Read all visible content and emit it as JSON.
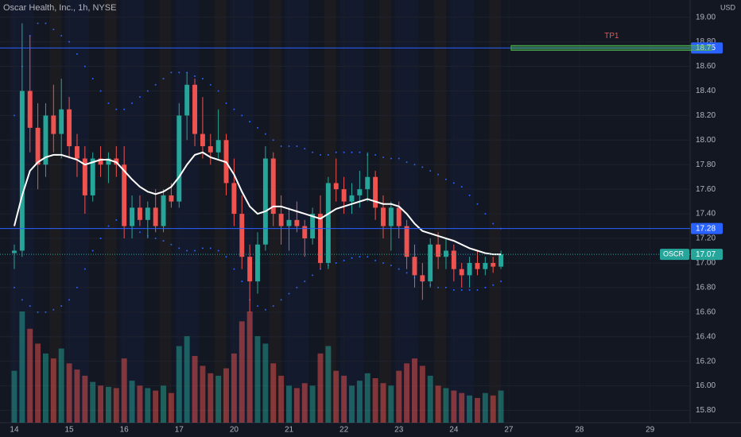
{
  "chart_data": {
    "type": "candlestick",
    "title": "Oscar Health, Inc., 1h, NYSE",
    "currency": "USD",
    "up_color": "#26a69a",
    "down_color": "#ef5350",
    "xlim": [
      -1.82,
      86.1
    ],
    "xticks": [
      {
        "value": 0,
        "label": "14"
      },
      {
        "value": 7,
        "label": "15"
      },
      {
        "value": 14,
        "label": "16"
      },
      {
        "value": 21,
        "label": "17"
      },
      {
        "value": 28,
        "label": "20"
      },
      {
        "value": 35,
        "label": "21"
      },
      {
        "value": 42,
        "label": "22"
      },
      {
        "value": 49,
        "label": "23"
      },
      {
        "value": 56,
        "label": "24"
      },
      {
        "value": 63,
        "label": "27"
      },
      {
        "value": 72,
        "label": "28"
      },
      {
        "value": 81,
        "label": "29"
      }
    ],
    "ylim": [
      15.7,
      19.14
    ],
    "yticks": [
      {
        "value": 15.8,
        "label": "15.80"
      },
      {
        "value": 16.0,
        "label": "16.00"
      },
      {
        "value": 16.2,
        "label": "16.20"
      },
      {
        "value": 16.4,
        "label": "16.40"
      },
      {
        "value": 16.6,
        "label": "16.60"
      },
      {
        "value": 16.8,
        "label": "16.80"
      },
      {
        "value": 17.0,
        "label": "17.00"
      },
      {
        "value": 17.2,
        "label": "17.20"
      },
      {
        "value": 17.4,
        "label": "17.40"
      },
      {
        "value": 17.6,
        "label": "17.60"
      },
      {
        "value": 17.8,
        "label": "17.80"
      },
      {
        "value": 18.0,
        "label": "18.00"
      },
      {
        "value": 18.2,
        "label": "18.20"
      },
      {
        "value": 18.4,
        "label": "18.40"
      },
      {
        "value": 18.6,
        "label": "18.60"
      },
      {
        "value": 18.8,
        "label": "18.80"
      },
      {
        "value": 19.0,
        "label": "19.00"
      }
    ],
    "open": [
      17.08,
      17.1,
      18.4,
      18.1,
      17.8,
      18.2,
      18.05,
      18.25,
      17.95,
      17.85,
      17.55,
      17.85,
      17.8,
      17.85,
      17.8,
      17.3,
      17.45,
      17.35,
      17.45,
      17.3,
      17.55,
      17.5,
      18.2,
      18.45,
      18.05,
      17.95,
      17.9,
      18.0,
      17.65,
      17.4,
      17.05,
      16.85,
      17.15,
      17.85,
      17.4,
      17.3,
      17.35,
      17.3,
      17.2,
      17.4,
      17.0,
      17.65,
      17.6,
      17.5,
      17.55,
      17.6,
      17.7,
      17.45,
      17.3,
      17.45,
      17.3,
      17.05,
      16.9,
      16.85,
      17.15,
      17.05,
      17.1,
      16.95,
      16.9,
      17.0,
      16.95,
      17.0,
      16.97
    ],
    "high": [
      17.15,
      18.95,
      18.85,
      18.3,
      18.3,
      18.45,
      18.5,
      18.35,
      18.05,
      17.95,
      17.9,
      17.95,
      17.9,
      17.95,
      17.95,
      17.55,
      17.55,
      17.5,
      17.6,
      17.6,
      17.65,
      18.3,
      18.55,
      18.5,
      18.35,
      18.05,
      18.25,
      18.05,
      17.85,
      17.55,
      17.15,
      17.25,
      17.95,
      17.9,
      17.55,
      17.45,
      17.5,
      17.35,
      17.45,
      17.55,
      17.7,
      17.85,
      17.7,
      17.65,
      17.75,
      17.9,
      17.75,
      17.55,
      17.5,
      17.5,
      17.35,
      17.15,
      17.0,
      17.2,
      17.25,
      17.2,
      17.15,
      17.0,
      17.05,
      17.1,
      17.05,
      17.05,
      17.1
    ],
    "low": [
      16.95,
      17.05,
      17.9,
      17.6,
      17.7,
      17.9,
      17.85,
      17.85,
      17.7,
      17.4,
      17.5,
      17.7,
      17.65,
      17.7,
      17.2,
      17.2,
      17.3,
      17.2,
      17.25,
      17.25,
      17.45,
      17.45,
      18.0,
      17.95,
      17.85,
      17.8,
      17.85,
      17.55,
      17.3,
      16.95,
      16.6,
      16.75,
      17.1,
      17.3,
      17.15,
      17.1,
      17.25,
      17.05,
      17.15,
      16.95,
      16.95,
      17.5,
      17.4,
      17.4,
      17.45,
      17.5,
      17.35,
      17.2,
      17.1,
      17.2,
      16.95,
      16.8,
      16.7,
      16.8,
      16.95,
      16.95,
      16.85,
      16.8,
      16.8,
      16.9,
      16.9,
      16.92,
      16.95
    ],
    "close": [
      17.1,
      18.4,
      18.1,
      17.8,
      18.2,
      18.05,
      18.25,
      17.95,
      17.85,
      17.55,
      17.85,
      17.8,
      17.85,
      17.8,
      17.3,
      17.45,
      17.35,
      17.45,
      17.3,
      17.55,
      17.5,
      18.2,
      18.45,
      18.05,
      17.95,
      17.9,
      18.0,
      17.65,
      17.4,
      17.05,
      16.85,
      17.15,
      17.85,
      17.4,
      17.3,
      17.35,
      17.3,
      17.2,
      17.4,
      17.0,
      17.65,
      17.6,
      17.5,
      17.55,
      17.6,
      17.7,
      17.45,
      17.3,
      17.45,
      17.3,
      17.05,
      16.9,
      16.85,
      17.15,
      17.05,
      17.1,
      16.95,
      16.9,
      17.0,
      16.95,
      17.0,
      16.97,
      17.07
    ],
    "volume": [
      420,
      900,
      760,
      640,
      560,
      520,
      600,
      480,
      430,
      380,
      330,
      300,
      290,
      280,
      520,
      340,
      300,
      280,
      260,
      300,
      240,
      620,
      700,
      540,
      460,
      400,
      380,
      440,
      560,
      820,
      900,
      700,
      640,
      480,
      380,
      300,
      280,
      320,
      300,
      560,
      620,
      420,
      380,
      300,
      340,
      400,
      360,
      320,
      300,
      420,
      480,
      520,
      460,
      380,
      300,
      280,
      260,
      240,
      220,
      200,
      240,
      220,
      260
    ],
    "ma": [
      17.3,
      17.55,
      17.75,
      17.82,
      17.86,
      17.88,
      17.88,
      17.86,
      17.84,
      17.8,
      17.82,
      17.84,
      17.84,
      17.82,
      17.75,
      17.68,
      17.62,
      17.58,
      17.56,
      17.58,
      17.62,
      17.7,
      17.8,
      17.88,
      17.9,
      17.86,
      17.84,
      17.82,
      17.72,
      17.58,
      17.46,
      17.4,
      17.42,
      17.46,
      17.46,
      17.44,
      17.42,
      17.4,
      17.38,
      17.36,
      17.4,
      17.44,
      17.46,
      17.48,
      17.5,
      17.52,
      17.5,
      17.48,
      17.48,
      17.46,
      17.4,
      17.32,
      17.26,
      17.24,
      17.22,
      17.2,
      17.18,
      17.15,
      17.12,
      17.1,
      17.08,
      17.07,
      17.07
    ],
    "upper": [
      18.2,
      18.6,
      18.85,
      18.95,
      18.95,
      18.9,
      18.85,
      18.8,
      18.7,
      18.6,
      18.5,
      18.4,
      18.3,
      18.25,
      18.25,
      18.3,
      18.35,
      18.4,
      18.45,
      18.5,
      18.55,
      18.55,
      18.55,
      18.52,
      18.5,
      18.45,
      18.4,
      18.3,
      18.25,
      18.2,
      18.15,
      18.1,
      18.05,
      18.0,
      17.95,
      17.95,
      17.95,
      17.93,
      17.9,
      17.88,
      17.88,
      17.9,
      17.9,
      17.9,
      17.9,
      17.88,
      17.88,
      17.86,
      17.85,
      17.85,
      17.82,
      17.8,
      17.78,
      17.75,
      17.72,
      17.68,
      17.65,
      17.62,
      17.55,
      17.48,
      17.4,
      17.32,
      17.28
    ],
    "lower": [
      16.8,
      16.7,
      16.65,
      16.6,
      16.6,
      16.62,
      16.65,
      16.7,
      16.8,
      16.95,
      17.1,
      17.2,
      17.3,
      17.35,
      17.32,
      17.28,
      17.25,
      17.22,
      17.2,
      17.18,
      17.15,
      17.12,
      17.1,
      17.1,
      17.12,
      17.12,
      17.1,
      17.05,
      16.95,
      16.85,
      16.7,
      16.65,
      16.62,
      16.65,
      16.7,
      16.75,
      16.8,
      16.85,
      16.9,
      16.95,
      16.98,
      17.0,
      17.02,
      17.04,
      17.05,
      17.05,
      17.02,
      17.0,
      16.98,
      16.95,
      16.92,
      16.88,
      16.85,
      16.82,
      16.8,
      16.8,
      16.78,
      16.78,
      16.78,
      16.78,
      16.8,
      16.82,
      16.85
    ],
    "levels": [
      {
        "value": 18.75,
        "label": "18.75"
      },
      {
        "value": 17.28,
        "label": "17.28"
      }
    ],
    "last_price": {
      "symbol": "OSCR",
      "value": 17.07,
      "label": "17.07"
    },
    "target_box": {
      "label": "TP1",
      "value": 18.75,
      "x_range": [
        63.3,
        88.9
      ]
    }
  }
}
